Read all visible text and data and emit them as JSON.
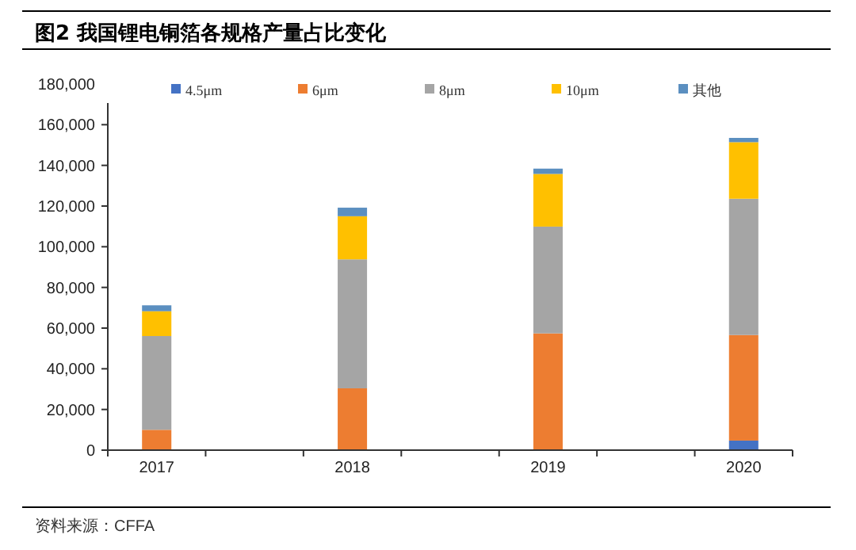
{
  "chart_data": {
    "type": "bar",
    "title": "图2  我国锂电铜箔各规格产量占比变化",
    "stacked": true,
    "categories": [
      "2017",
      null,
      "2018",
      null,
      "2019",
      null,
      "2020"
    ],
    "series": [
      {
        "name": "4.5μm",
        "color": "#4472c4",
        "values": [
          0,
          null,
          0,
          null,
          0,
          null,
          4700
        ]
      },
      {
        "name": "6μm",
        "color": "#ed7d31",
        "values": [
          10000,
          null,
          30400,
          null,
          57400,
          null,
          51900
        ]
      },
      {
        "name": "8μm",
        "color": "#a5a5a5",
        "values": [
          46100,
          null,
          63400,
          null,
          52500,
          null,
          67000
        ]
      },
      {
        "name": "10μm",
        "color": "#ffc000",
        "values": [
          12200,
          null,
          21200,
          null,
          25900,
          null,
          27800
        ]
      },
      {
        "name": "其他",
        "color": "#5b8fc0",
        "values": [
          2900,
          null,
          4200,
          null,
          2600,
          null,
          2100
        ]
      }
    ],
    "ylim": [
      0,
      180000
    ],
    "yticks": [
      0,
      {
        "value": 20000,
        "label": "20,000"
      },
      {
        "value": 40000,
        "label": "40,000"
      },
      {
        "value": 60000,
        "label": "60,000"
      },
      {
        "value": 80000,
        "label": "80,000"
      },
      {
        "value": 100000,
        "label": "100,000"
      },
      {
        "value": 120000,
        "label": "120,000"
      },
      {
        "value": 140000,
        "label": "140,000"
      },
      {
        "value": 160000,
        "label": "160,000"
      },
      {
        "value": 180000,
        "label": "180,000"
      }
    ],
    "grid": false,
    "legend": "top",
    "annotations": [
      "资料来源：CFFA"
    ]
  }
}
